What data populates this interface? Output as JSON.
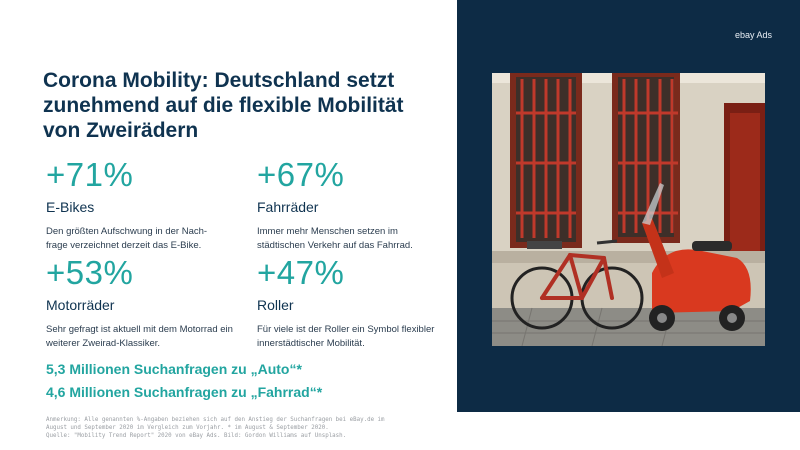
{
  "title": "Corona Mobility: Deutschland setzt zunehmend auf die flexible Mobilität von Zweirädern",
  "brand": "ebay Ads",
  "stats": [
    {
      "value": "+71%",
      "label": "E-Bikes",
      "desc": "Den größten Aufschwung in der Nach-frage verzeichnet derzeit das E-Bike."
    },
    {
      "value": "+67%",
      "label": "Fahrräder",
      "desc": "Immer mehr Menschen setzen im städtischen Verkehr auf das Fahrrad."
    },
    {
      "value": "+53%",
      "label": "Motorräder",
      "desc": "Sehr gefragt ist aktuell mit dem Motorrad ein weiterer Zweirad-Klassiker."
    },
    {
      "value": "+47%",
      "label": "Roller",
      "desc": "Für viele ist der Roller ein Symbol flexibler innerstädtischer Mobilität."
    }
  ],
  "searches": [
    "5,3 Millionen Suchanfragen zu „Auto“*",
    "4,6 Millionen Suchanfragen zu „Fahrrad“*"
  ],
  "note": [
    "Anmerkung: Alle genannten %-Angaben beziehen sich auf den Anstieg der Suchanfragen bei eBay.de im",
    "August und September 2020 im Vergleich zum Vorjahr. * im August & September 2020.",
    "Quelle: \"Mobility Trend Report\" 2020 von eBay Ads. Bild: Gordon Williams auf Unsplash."
  ],
  "colors": {
    "accent": "#22a5a0",
    "navy": "#0f3350",
    "panel": "#0d2b45"
  }
}
